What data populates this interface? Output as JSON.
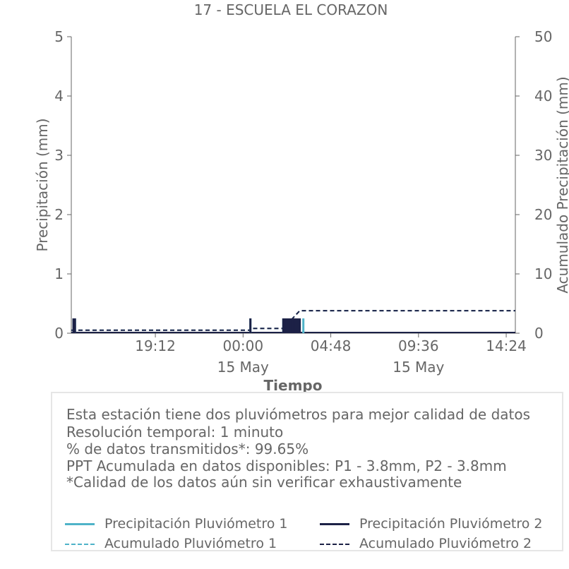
{
  "chart_data": {
    "type": "bar",
    "title": "17 - ESCUELA EL CORAZON",
    "xlabel": "Tiempo",
    "ylabel": "Precipitación (mm)",
    "y2label": "Acumulado Precipitación (mm)",
    "ylim": [
      0,
      5
    ],
    "y2lim": [
      0,
      50
    ],
    "yticks": [
      "0",
      "1",
      "2",
      "3",
      "4",
      "5"
    ],
    "y2ticks": [
      "0",
      "10",
      "20",
      "30",
      "40",
      "50"
    ],
    "xlim_hours": [
      14.6,
      38.9
    ],
    "xticks": [
      {
        "h": 19.2,
        "label": "19:12",
        "sub": ""
      },
      {
        "h": 24.0,
        "label": "00:00",
        "sub": "15 May"
      },
      {
        "h": 28.8,
        "label": "04:48",
        "sub": ""
      },
      {
        "h": 33.6,
        "label": "09:36",
        "sub": "15 May"
      },
      {
        "h": 38.4,
        "label": "14:24",
        "sub": ""
      }
    ],
    "grid": false,
    "series": [
      {
        "name": "Precipitación Pluviómetro 1",
        "kind": "bar",
        "color": "#4fb3c8",
        "bars": [
          [
            14.72,
            0.25
          ],
          [
            14.8,
            0.25
          ],
          [
            24.4,
            0.25
          ],
          [
            26.2,
            0.25
          ],
          [
            26.35,
            0.25
          ],
          [
            26.5,
            0.25
          ],
          [
            26.65,
            0.25
          ],
          [
            26.8,
            0.25
          ],
          [
            26.95,
            0.25
          ],
          [
            27.1,
            0.25
          ],
          [
            27.3,
            0.25
          ]
        ]
      },
      {
        "name": "Precipitación Pluviómetro 2",
        "kind": "bar",
        "color": "#1c2146",
        "bars": [
          [
            14.72,
            0.25
          ],
          [
            14.8,
            0.25
          ],
          [
            24.4,
            0.25
          ],
          [
            26.2,
            0.25
          ],
          [
            26.3,
            0.25
          ],
          [
            26.4,
            0.25
          ],
          [
            26.5,
            0.25
          ],
          [
            26.6,
            0.25
          ],
          [
            26.7,
            0.25
          ],
          [
            26.8,
            0.25
          ],
          [
            26.9,
            0.25
          ],
          [
            27.0,
            0.25
          ],
          [
            27.1,
            0.25
          ]
        ]
      },
      {
        "name": "Acumulado Pluviómetro 1",
        "kind": "line",
        "axis": "right",
        "color": "#4fb3c8",
        "points": [
          [
            14.6,
            0.5
          ],
          [
            24.4,
            0.5
          ],
          [
            24.4,
            0.8
          ],
          [
            26.2,
            0.8
          ],
          [
            26.5,
            1.8
          ],
          [
            26.8,
            2.8
          ],
          [
            27.1,
            3.8
          ],
          [
            38.9,
            3.8
          ]
        ]
      },
      {
        "name": "Acumulado Pluviómetro 2",
        "kind": "line",
        "axis": "right",
        "color": "#1c2146",
        "points": [
          [
            14.6,
            0.5
          ],
          [
            24.4,
            0.5
          ],
          [
            24.4,
            0.8
          ],
          [
            26.2,
            0.8
          ],
          [
            26.5,
            1.8
          ],
          [
            26.8,
            2.8
          ],
          [
            27.1,
            3.8
          ],
          [
            38.9,
            3.8
          ]
        ]
      }
    ]
  },
  "notes": [
    "Esta estación tiene dos pluviómetros para mejor calidad de datos",
    "Resolución temporal: 1 minuto",
    "% de datos transmitidos*: 99.65%",
    "PPT Acumulada en datos disponibles: P1 - 3.8mm, P2 - 3.8mm",
    "*Calidad de los datos aún sin verificar exhaustivamente"
  ],
  "legend": [
    {
      "label": "Precipitación Pluviómetro 1",
      "color": "#4fb3c8",
      "style": "solid"
    },
    {
      "label": "Precipitación Pluviómetro 2",
      "color": "#1c2146",
      "style": "solid"
    },
    {
      "label": "Acumulado Pluviómetro 1",
      "color": "#4fb3c8",
      "style": "dashed"
    },
    {
      "label": "Acumulado Pluviómetro 2",
      "color": "#1c2146",
      "style": "dashed"
    }
  ]
}
